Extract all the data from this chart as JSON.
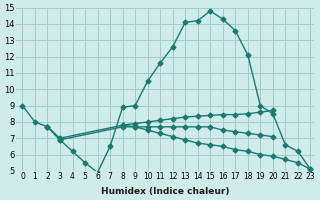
{
  "xlabel": "Humidex (Indice chaleur)",
  "background_color": "#d0ecea",
  "grid_color": "#a0ccc8",
  "line_color": "#1a7a6e",
  "x_ticks": [
    0,
    1,
    2,
    3,
    4,
    5,
    6,
    7,
    8,
    9,
    10,
    11,
    12,
    13,
    14,
    15,
    16,
    17,
    18,
    19,
    20,
    21,
    22,
    23
  ],
  "y_ticks": [
    5,
    6,
    7,
    8,
    9,
    10,
    11,
    12,
    13,
    14,
    15
  ],
  "ylim": [
    5,
    15
  ],
  "xlim": [
    0,
    23
  ],
  "series": [
    {
      "x": [
        0,
        1,
        2,
        3,
        4,
        5,
        6,
        7,
        8,
        9,
        10,
        11,
        12,
        13,
        14,
        15,
        16,
        17,
        18,
        19,
        20,
        21,
        22,
        23
      ],
      "y": [
        9,
        8,
        7.7,
        6.9,
        6.2,
        5.5,
        4.9,
        6.5,
        8.9,
        9.0,
        10.5,
        11.6,
        12.6,
        14.1,
        14.2,
        14.8,
        14.3,
        13.6,
        12.1,
        9.0,
        8.5,
        6.6,
        6.2,
        5.1
      ]
    },
    {
      "x": [
        2,
        3,
        8,
        9,
        10,
        11,
        12,
        13,
        14,
        15,
        16,
        17,
        18,
        19,
        20
      ],
      "y": [
        7.7,
        7.0,
        7.8,
        7.9,
        8.0,
        8.1,
        8.2,
        8.3,
        8.35,
        8.4,
        8.45,
        8.45,
        8.5,
        8.6,
        8.7
      ]
    },
    {
      "x": [
        2,
        3,
        8,
        9,
        10,
        11,
        12,
        13,
        14,
        15,
        16,
        17,
        18,
        19,
        20
      ],
      "y": [
        7.7,
        6.9,
        7.7,
        7.7,
        7.7,
        7.7,
        7.7,
        7.7,
        7.7,
        7.7,
        7.5,
        7.4,
        7.3,
        7.2,
        7.1
      ]
    },
    {
      "x": [
        8,
        9,
        10,
        11,
        12,
        13,
        14,
        15,
        16,
        17,
        18,
        19,
        20,
        21,
        22,
        23
      ],
      "y": [
        7.8,
        7.7,
        7.5,
        7.3,
        7.1,
        6.9,
        6.7,
        6.6,
        6.5,
        6.3,
        6.2,
        6.0,
        5.9,
        5.7,
        5.5,
        5.1
      ]
    }
  ]
}
